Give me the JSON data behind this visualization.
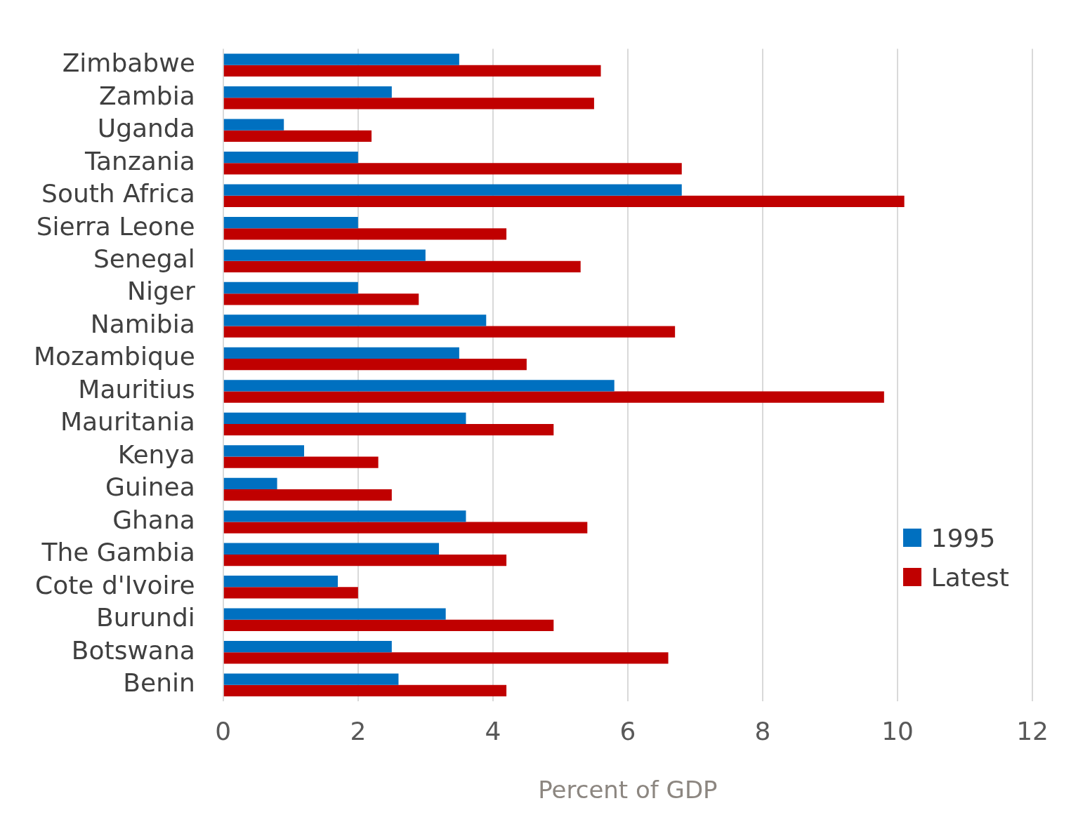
{
  "chart_data": {
    "type": "bar",
    "orientation": "horizontal",
    "xlabel": "Percent of GDP",
    "categories": [
      "Zimbabwe",
      "Zambia",
      "Uganda",
      "Tanzania",
      "South Africa",
      "Sierra Leone",
      "Senegal",
      "Niger",
      "Namibia",
      "Mozambique",
      "Mauritius",
      "Mauritania",
      "Kenya",
      "Guinea",
      "Ghana",
      "The Gambia",
      "Cote d'Ivoire",
      "Burundi",
      "Botswana",
      "Benin"
    ],
    "series": [
      {
        "name": "1995",
        "color": "#0070c0",
        "values": [
          3.5,
          2.5,
          0.9,
          2.0,
          6.8,
          2.0,
          3.0,
          2.0,
          3.9,
          3.5,
          5.8,
          3.6,
          1.2,
          0.8,
          3.6,
          3.2,
          1.7,
          3.3,
          2.5,
          2.6
        ]
      },
      {
        "name": "Latest",
        "color": "#c00000",
        "values": [
          5.6,
          5.5,
          2.2,
          6.8,
          10.1,
          4.2,
          5.3,
          2.9,
          6.7,
          4.5,
          9.8,
          4.9,
          2.3,
          2.5,
          5.4,
          4.2,
          2.0,
          4.9,
          6.6,
          4.2
        ]
      }
    ],
    "xlim": [
      0,
      12
    ],
    "xticks": [
      0,
      2,
      4,
      6,
      8,
      10,
      12
    ],
    "grid": "x",
    "legend": "right"
  }
}
